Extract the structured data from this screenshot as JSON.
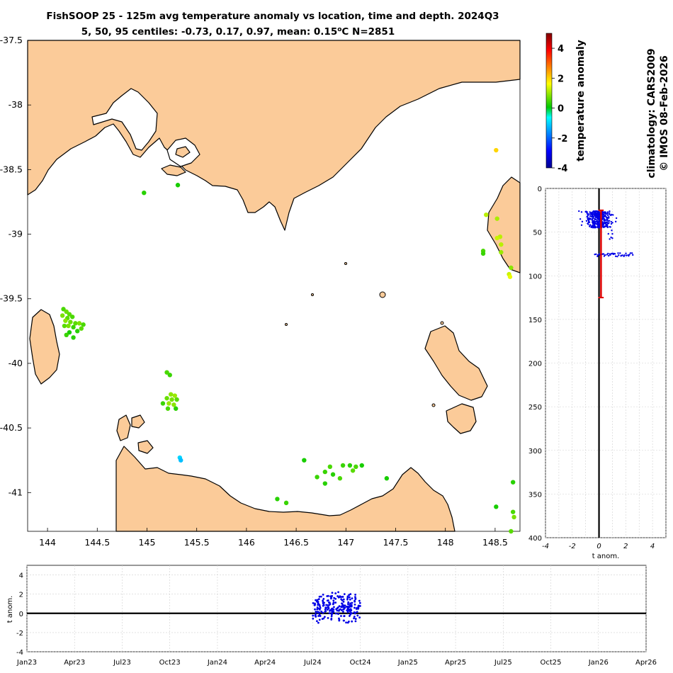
{
  "title": {
    "line1": "FishSOOP 25 - 125m avg temperature anomaly vs location, time and depth. 2024Q3",
    "line2_prefix": "5, 50, 95 centiles: -0.73, 0.17, 0.97, mean: 0.15",
    "line2_degree": "o",
    "line2_suffix": "C N=2851"
  },
  "side_labels": {
    "climatology": "climatology: CARS2009",
    "copyright": "© IMOS 08-Feb-2026"
  },
  "colors": {
    "land": "#fbcb99",
    "coast": "#000000",
    "profile_points": "#0000e6",
    "mean_profile": "#e00000"
  },
  "chart_data": [
    {
      "type": "scatter",
      "name": "map",
      "xlim": [
        143.8,
        148.75
      ],
      "ylim": [
        -41.3,
        -37.5
      ],
      "xticks": [
        "144",
        "144.5",
        "145",
        "145.5",
        "146",
        "146.5",
        "147",
        "147.5",
        "148",
        "148.5"
      ],
      "yticks": [
        "-37.5",
        "-38",
        "-38.5",
        "-39",
        "-39.5",
        "-40",
        "-40.5",
        "-41"
      ],
      "colorbar": {
        "label": "temperature anomaly",
        "range": [
          -4,
          5
        ],
        "ticks": [
          "4",
          "2",
          "0",
          "-2",
          "-4"
        ]
      },
      "points": [
        {
          "lon": 144.97,
          "lat": -38.68,
          "t": 0.3
        },
        {
          "lon": 145.31,
          "lat": -38.62,
          "t": 0.2
        },
        {
          "lon": 148.51,
          "lat": -38.35,
          "t": 2.0
        },
        {
          "lon": 148.41,
          "lat": -38.85,
          "t": 1.2
        },
        {
          "lon": 148.52,
          "lat": -38.88,
          "t": 1.1
        },
        {
          "lon": 148.55,
          "lat": -39.02,
          "t": 1.2
        },
        {
          "lon": 148.52,
          "lat": -39.03,
          "t": 1.3
        },
        {
          "lon": 148.56,
          "lat": -39.08,
          "t": 1.2
        },
        {
          "lon": 148.38,
          "lat": -39.13,
          "t": 0.5
        },
        {
          "lon": 148.38,
          "lat": -39.15,
          "t": 0.4
        },
        {
          "lon": 148.56,
          "lat": -39.14,
          "t": 1.0
        },
        {
          "lon": 148.66,
          "lat": -39.26,
          "t": 0.9
        },
        {
          "lon": 148.64,
          "lat": -39.31,
          "t": 1.3
        },
        {
          "lon": 148.65,
          "lat": -39.33,
          "t": 1.5
        },
        {
          "lon": 144.16,
          "lat": -39.58,
          "t": 0.5
        },
        {
          "lon": 144.19,
          "lat": -39.6,
          "t": 0.7
        },
        {
          "lon": 144.22,
          "lat": -39.62,
          "t": 0.6
        },
        {
          "lon": 144.15,
          "lat": -39.63,
          "t": 0.8
        },
        {
          "lon": 144.2,
          "lat": -39.65,
          "t": 0.6
        },
        {
          "lon": 144.25,
          "lat": -39.64,
          "t": 0.5
        },
        {
          "lon": 144.18,
          "lat": -39.67,
          "t": 0.9
        },
        {
          "lon": 144.23,
          "lat": -39.68,
          "t": 0.7
        },
        {
          "lon": 144.28,
          "lat": -39.69,
          "t": 0.6
        },
        {
          "lon": 144.32,
          "lat": -39.69,
          "t": 0.8
        },
        {
          "lon": 144.36,
          "lat": -39.7,
          "t": 0.5
        },
        {
          "lon": 144.34,
          "lat": -39.73,
          "t": 0.6
        },
        {
          "lon": 144.26,
          "lat": -39.72,
          "t": 0.4
        },
        {
          "lon": 144.21,
          "lat": -39.71,
          "t": 0.8
        },
        {
          "lon": 144.17,
          "lat": -39.71,
          "t": 0.6
        },
        {
          "lon": 144.3,
          "lat": -39.75,
          "t": 0.3
        },
        {
          "lon": 144.22,
          "lat": -39.76,
          "t": 0.2
        },
        {
          "lon": 144.19,
          "lat": -39.78,
          "t": 0.4
        },
        {
          "lon": 144.26,
          "lat": -39.8,
          "t": 0.3
        },
        {
          "lon": 145.2,
          "lat": -40.07,
          "t": 0.5
        },
        {
          "lon": 145.23,
          "lat": -40.09,
          "t": 0.4
        },
        {
          "lon": 145.24,
          "lat": -40.24,
          "t": 0.9
        },
        {
          "lon": 145.28,
          "lat": -40.25,
          "t": 1.0
        },
        {
          "lon": 145.2,
          "lat": -40.27,
          "t": 0.7
        },
        {
          "lon": 145.25,
          "lat": -40.28,
          "t": 0.8
        },
        {
          "lon": 145.3,
          "lat": -40.28,
          "t": 0.6
        },
        {
          "lon": 145.16,
          "lat": -40.31,
          "t": 0.4
        },
        {
          "lon": 145.22,
          "lat": -40.31,
          "t": 1.0
        },
        {
          "lon": 145.27,
          "lat": -40.32,
          "t": 0.9
        },
        {
          "lon": 145.21,
          "lat": -40.35,
          "t": 0.5
        },
        {
          "lon": 145.29,
          "lat": -40.35,
          "t": 0.3
        },
        {
          "lon": 145.33,
          "lat": -40.73,
          "t": -1.0
        },
        {
          "lon": 145.34,
          "lat": -40.75,
          "t": -1.2
        },
        {
          "lon": 146.58,
          "lat": -40.75,
          "t": 0.2
        },
        {
          "lon": 146.84,
          "lat": -40.8,
          "t": 0.5
        },
        {
          "lon": 146.97,
          "lat": -40.79,
          "t": 0.4
        },
        {
          "lon": 147.04,
          "lat": -40.79,
          "t": 0.3
        },
        {
          "lon": 147.1,
          "lat": -40.8,
          "t": 0.5
        },
        {
          "lon": 147.16,
          "lat": -40.79,
          "t": 0.2
        },
        {
          "lon": 146.79,
          "lat": -40.84,
          "t": 0.4
        },
        {
          "lon": 147.07,
          "lat": -40.83,
          "t": 0.6
        },
        {
          "lon": 146.87,
          "lat": -40.86,
          "t": 0.3
        },
        {
          "lon": 146.94,
          "lat": -40.89,
          "t": 0.5
        },
        {
          "lon": 146.71,
          "lat": -40.88,
          "t": 0.4
        },
        {
          "lon": 147.41,
          "lat": -40.89,
          "t": 0.2
        },
        {
          "lon": 146.79,
          "lat": -40.93,
          "t": 0.3
        },
        {
          "lon": 148.68,
          "lat": -40.92,
          "t": 0.3
        },
        {
          "lon": 146.31,
          "lat": -41.05,
          "t": 0.3
        },
        {
          "lon": 146.4,
          "lat": -41.08,
          "t": 0.4
        },
        {
          "lon": 148.51,
          "lat": -41.11,
          "t": 0.2
        },
        {
          "lon": 148.68,
          "lat": -41.15,
          "t": 0.5
        },
        {
          "lon": 148.69,
          "lat": -41.19,
          "t": 0.8
        },
        {
          "lon": 148.66,
          "lat": -41.3,
          "t": 0.6
        }
      ]
    },
    {
      "type": "scatter",
      "name": "depth_profile",
      "xlabel": "t anom.",
      "xlim": [
        -4,
        5
      ],
      "ylim": [
        0,
        400
      ],
      "xticks": [
        "-4",
        "-2",
        "0",
        "2",
        "4"
      ],
      "yticks": [
        "0",
        "50",
        "100",
        "150",
        "200",
        "250",
        "300",
        "350",
        "400"
      ],
      "mean_profile": {
        "x": 0.15,
        "depth_top": 25,
        "depth_bottom": 125,
        "whisker_half_width": 0.2
      },
      "cluster": {
        "x_min": -1.2,
        "x_max": 1.3,
        "depth_min": 26,
        "depth_max": 45,
        "n": 320
      },
      "scatter_points": [
        {
          "x": -1.5,
          "d": 26
        },
        {
          "x": -1.3,
          "d": 27
        },
        {
          "x": -0.9,
          "d": 28
        },
        {
          "x": -1.4,
          "d": 35
        },
        {
          "x": -1.3,
          "d": 42
        },
        {
          "x": 0.8,
          "d": 44
        },
        {
          "x": 0.95,
          "d": 48
        },
        {
          "x": 1.0,
          "d": 52
        },
        {
          "x": 0.9,
          "d": 56
        },
        {
          "x": 0.8,
          "d": 58
        },
        {
          "x": 1.0,
          "d": 57
        },
        {
          "x": 0.7,
          "d": 52
        },
        {
          "x": -0.6,
          "d": 28
        },
        {
          "x": 1.3,
          "d": 34
        },
        {
          "x": 1.25,
          "d": 38
        },
        {
          "x": -1.25,
          "d": 38
        }
      ],
      "line_points": {
        "x_start": -0.3,
        "x_end": 2.5,
        "depth": 76,
        "count": 40
      }
    },
    {
      "type": "scatter",
      "name": "timeseries",
      "ylabel": "t anom.",
      "ylim": [
        -4,
        5
      ],
      "yticks": [
        "4",
        "2",
        "0",
        "-2",
        "-4"
      ],
      "x_categories": [
        "Jan23",
        "Apr23",
        "Jul23",
        "Oct23",
        "Jan24",
        "Apr24",
        "Jul24",
        "Oct24",
        "Jan25",
        "Apr25",
        "Jul25",
        "Oct25",
        "Jan26",
        "Apr26"
      ],
      "cluster": {
        "month_start": 18.0,
        "month_end": 21.0,
        "t_min": -1.2,
        "t_max": 2.4,
        "n": 220
      }
    }
  ]
}
